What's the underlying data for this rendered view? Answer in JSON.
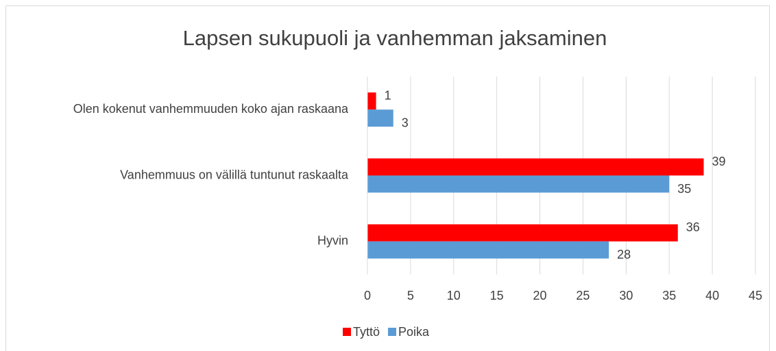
{
  "chart_data": {
    "type": "bar",
    "orientation": "horizontal",
    "title": "Lapsen sukupuoli ja vanhemman jaksaminen",
    "categories": [
      "Olen kokenut vanhemmuuden koko ajan raskaana",
      "Vanhemmuus on välillä tuntunut raskaalta",
      "Hyvin"
    ],
    "series": [
      {
        "name": "Tyttö",
        "color": "#ff0000",
        "values": [
          1,
          39,
          36
        ]
      },
      {
        "name": "Poika",
        "color": "#5b9bd5",
        "values": [
          3,
          35,
          28
        ]
      }
    ],
    "xlim": [
      0,
      45
    ],
    "xticks": [
      0,
      5,
      10,
      15,
      20,
      25,
      30,
      35,
      40,
      45
    ],
    "grid": true,
    "legend": "bottom"
  }
}
